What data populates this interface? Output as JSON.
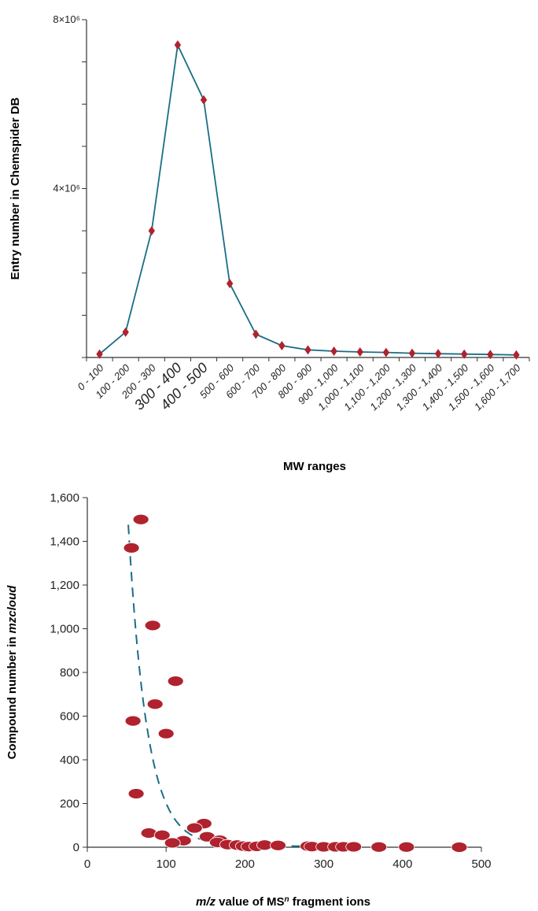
{
  "colors": {
    "line": "#1a6e84",
    "marker": "#b0222e",
    "axis": "#333333"
  },
  "chart_data": [
    {
      "type": "line",
      "ylabel": "Entry number in Chemspider DB",
      "xlabel": "MW ranges",
      "ylim": [
        0,
        8000000
      ],
      "yticks": [
        {
          "value": 4000000,
          "label": "4×10⁶"
        },
        {
          "value": 8000000,
          "label": "8×10⁶"
        }
      ],
      "categories": [
        "0 - 100",
        "100 - 200",
        "200 - 300",
        "300 - 400",
        "400 - 500",
        "500 - 600",
        "600 - 700",
        "700 - 800",
        "800 - 900",
        "900 - 1,000",
        "1,000 - 1,100",
        "1,100 - 1,200",
        "1,200 - 1,300",
        "1,300 - 1,400",
        "1,400 - 1,500",
        "1,500 - 1,600",
        "1,600 - 1,700"
      ],
      "emphasized_categories": [
        "300 - 400",
        "400 - 500"
      ],
      "values": [
        80000,
        600000,
        3000000,
        7400000,
        6100000,
        1750000,
        550000,
        280000,
        180000,
        150000,
        130000,
        120000,
        100000,
        90000,
        80000,
        70000,
        60000
      ],
      "marker": "diamond"
    },
    {
      "type": "scatter",
      "ylabel": "Compound number in mzcloud",
      "ylabel_parts": [
        {
          "text": "Compound number in ",
          "italic": false
        },
        {
          "text": "mzcloud",
          "italic": true
        }
      ],
      "xlabel": "m/z value of MSⁿ fragment ions",
      "xlabel_parts": [
        {
          "text": "m/z",
          "italic": true
        },
        {
          "text": " value of MS",
          "italic": false
        },
        {
          "text": "n",
          "italic": true,
          "sup": true
        },
        {
          "text": " fragment ions",
          "italic": false
        }
      ],
      "xlim": [
        0,
        500
      ],
      "ylim": [
        0,
        1600
      ],
      "xticks": [
        {
          "value": 0,
          "label": "0"
        },
        {
          "value": 100,
          "label": "100"
        },
        {
          "value": 200,
          "label": "200"
        },
        {
          "value": 300,
          "label": "300"
        },
        {
          "value": 400,
          "label": "400"
        },
        {
          "value": 500,
          "label": "500"
        }
      ],
      "yticks": [
        {
          "value": 0,
          "label": "0"
        },
        {
          "value": 200,
          "label": "200"
        },
        {
          "value": 400,
          "label": "400"
        },
        {
          "value": 600,
          "label": "600"
        },
        {
          "value": 800,
          "label": "800"
        },
        {
          "value": 1000,
          "label": "1,000"
        },
        {
          "value": 1200,
          "label": "1,200"
        },
        {
          "value": 1400,
          "label": "1,400"
        },
        {
          "value": 1600,
          "label": "1,600"
        }
      ],
      "points": [
        [
          68,
          1500
        ],
        [
          56,
          1370
        ],
        [
          83,
          1015
        ],
        [
          112,
          760
        ],
        [
          86,
          655
        ],
        [
          58,
          578
        ],
        [
          100,
          520
        ],
        [
          62,
          245
        ],
        [
          148,
          108
        ],
        [
          136,
          88
        ],
        [
          78,
          65
        ],
        [
          95,
          55
        ],
        [
          152,
          48
        ],
        [
          168,
          32
        ],
        [
          122,
          30
        ],
        [
          108,
          20
        ],
        [
          165,
          22
        ],
        [
          178,
          12
        ],
        [
          190,
          10
        ],
        [
          198,
          5
        ],
        [
          205,
          3
        ],
        [
          215,
          4
        ],
        [
          225,
          10
        ],
        [
          242,
          8
        ],
        [
          280,
          5
        ],
        [
          285,
          3
        ],
        [
          300,
          2
        ],
        [
          315,
          2
        ],
        [
          325,
          2
        ],
        [
          338,
          2
        ],
        [
          370,
          1
        ],
        [
          405,
          1
        ],
        [
          472,
          0
        ]
      ],
      "trend": {
        "style": "dashed",
        "model": "decay",
        "a": 1600,
        "x0": 50,
        "k": 0.042,
        "floor": 5
      }
    }
  ]
}
